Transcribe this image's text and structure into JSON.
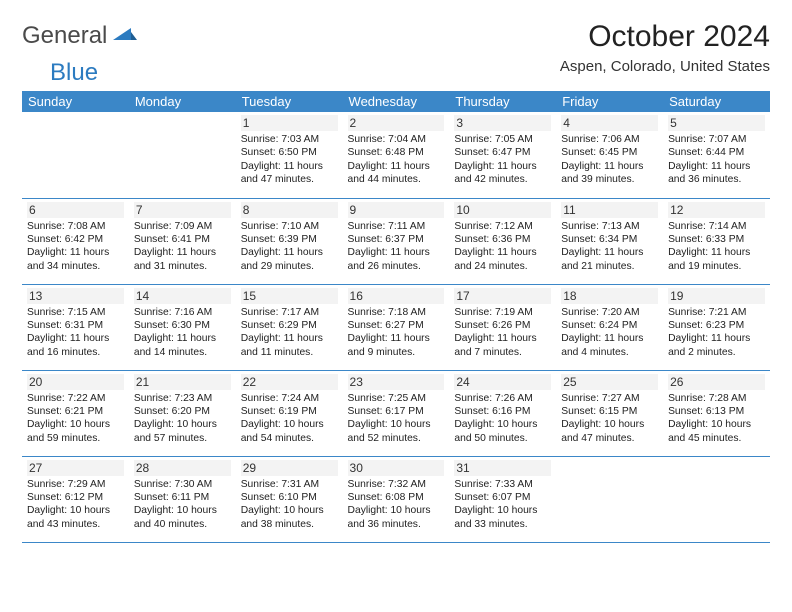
{
  "brand": {
    "text_general": "General",
    "text_blue": "Blue",
    "general_color": "#4a4a4a",
    "blue_color": "#2c7bc0"
  },
  "title": "October 2024",
  "location": "Aspen, Colorado, United States",
  "weekdays": [
    "Sunday",
    "Monday",
    "Tuesday",
    "Wednesday",
    "Thursday",
    "Friday",
    "Saturday"
  ],
  "colors": {
    "header_bg": "#3b87c8",
    "header_text": "#ffffff",
    "row_border": "#3b87c8",
    "daynum_bg": "#f3f3f3",
    "page_bg": "#ffffff"
  },
  "typography": {
    "month_title_fontsize": 30,
    "location_fontsize": 15,
    "weekday_fontsize": 13,
    "daynum_fontsize": 12,
    "cell_fontsize": 10.3
  },
  "weeks": [
    [
      null,
      null,
      {
        "day": "1",
        "sunrise": "Sunrise: 7:03 AM",
        "sunset": "Sunset: 6:50 PM",
        "daylight1": "Daylight: 11 hours",
        "daylight2": "and 47 minutes."
      },
      {
        "day": "2",
        "sunrise": "Sunrise: 7:04 AM",
        "sunset": "Sunset: 6:48 PM",
        "daylight1": "Daylight: 11 hours",
        "daylight2": "and 44 minutes."
      },
      {
        "day": "3",
        "sunrise": "Sunrise: 7:05 AM",
        "sunset": "Sunset: 6:47 PM",
        "daylight1": "Daylight: 11 hours",
        "daylight2": "and 42 minutes."
      },
      {
        "day": "4",
        "sunrise": "Sunrise: 7:06 AM",
        "sunset": "Sunset: 6:45 PM",
        "daylight1": "Daylight: 11 hours",
        "daylight2": "and 39 minutes."
      },
      {
        "day": "5",
        "sunrise": "Sunrise: 7:07 AM",
        "sunset": "Sunset: 6:44 PM",
        "daylight1": "Daylight: 11 hours",
        "daylight2": "and 36 minutes."
      }
    ],
    [
      {
        "day": "6",
        "sunrise": "Sunrise: 7:08 AM",
        "sunset": "Sunset: 6:42 PM",
        "daylight1": "Daylight: 11 hours",
        "daylight2": "and 34 minutes."
      },
      {
        "day": "7",
        "sunrise": "Sunrise: 7:09 AM",
        "sunset": "Sunset: 6:41 PM",
        "daylight1": "Daylight: 11 hours",
        "daylight2": "and 31 minutes."
      },
      {
        "day": "8",
        "sunrise": "Sunrise: 7:10 AM",
        "sunset": "Sunset: 6:39 PM",
        "daylight1": "Daylight: 11 hours",
        "daylight2": "and 29 minutes."
      },
      {
        "day": "9",
        "sunrise": "Sunrise: 7:11 AM",
        "sunset": "Sunset: 6:37 PM",
        "daylight1": "Daylight: 11 hours",
        "daylight2": "and 26 minutes."
      },
      {
        "day": "10",
        "sunrise": "Sunrise: 7:12 AM",
        "sunset": "Sunset: 6:36 PM",
        "daylight1": "Daylight: 11 hours",
        "daylight2": "and 24 minutes."
      },
      {
        "day": "11",
        "sunrise": "Sunrise: 7:13 AM",
        "sunset": "Sunset: 6:34 PM",
        "daylight1": "Daylight: 11 hours",
        "daylight2": "and 21 minutes."
      },
      {
        "day": "12",
        "sunrise": "Sunrise: 7:14 AM",
        "sunset": "Sunset: 6:33 PM",
        "daylight1": "Daylight: 11 hours",
        "daylight2": "and 19 minutes."
      }
    ],
    [
      {
        "day": "13",
        "sunrise": "Sunrise: 7:15 AM",
        "sunset": "Sunset: 6:31 PM",
        "daylight1": "Daylight: 11 hours",
        "daylight2": "and 16 minutes."
      },
      {
        "day": "14",
        "sunrise": "Sunrise: 7:16 AM",
        "sunset": "Sunset: 6:30 PM",
        "daylight1": "Daylight: 11 hours",
        "daylight2": "and 14 minutes."
      },
      {
        "day": "15",
        "sunrise": "Sunrise: 7:17 AM",
        "sunset": "Sunset: 6:29 PM",
        "daylight1": "Daylight: 11 hours",
        "daylight2": "and 11 minutes."
      },
      {
        "day": "16",
        "sunrise": "Sunrise: 7:18 AM",
        "sunset": "Sunset: 6:27 PM",
        "daylight1": "Daylight: 11 hours",
        "daylight2": "and 9 minutes."
      },
      {
        "day": "17",
        "sunrise": "Sunrise: 7:19 AM",
        "sunset": "Sunset: 6:26 PM",
        "daylight1": "Daylight: 11 hours",
        "daylight2": "and 7 minutes."
      },
      {
        "day": "18",
        "sunrise": "Sunrise: 7:20 AM",
        "sunset": "Sunset: 6:24 PM",
        "daylight1": "Daylight: 11 hours",
        "daylight2": "and 4 minutes."
      },
      {
        "day": "19",
        "sunrise": "Sunrise: 7:21 AM",
        "sunset": "Sunset: 6:23 PM",
        "daylight1": "Daylight: 11 hours",
        "daylight2": "and 2 minutes."
      }
    ],
    [
      {
        "day": "20",
        "sunrise": "Sunrise: 7:22 AM",
        "sunset": "Sunset: 6:21 PM",
        "daylight1": "Daylight: 10 hours",
        "daylight2": "and 59 minutes."
      },
      {
        "day": "21",
        "sunrise": "Sunrise: 7:23 AM",
        "sunset": "Sunset: 6:20 PM",
        "daylight1": "Daylight: 10 hours",
        "daylight2": "and 57 minutes."
      },
      {
        "day": "22",
        "sunrise": "Sunrise: 7:24 AM",
        "sunset": "Sunset: 6:19 PM",
        "daylight1": "Daylight: 10 hours",
        "daylight2": "and 54 minutes."
      },
      {
        "day": "23",
        "sunrise": "Sunrise: 7:25 AM",
        "sunset": "Sunset: 6:17 PM",
        "daylight1": "Daylight: 10 hours",
        "daylight2": "and 52 minutes."
      },
      {
        "day": "24",
        "sunrise": "Sunrise: 7:26 AM",
        "sunset": "Sunset: 6:16 PM",
        "daylight1": "Daylight: 10 hours",
        "daylight2": "and 50 minutes."
      },
      {
        "day": "25",
        "sunrise": "Sunrise: 7:27 AM",
        "sunset": "Sunset: 6:15 PM",
        "daylight1": "Daylight: 10 hours",
        "daylight2": "and 47 minutes."
      },
      {
        "day": "26",
        "sunrise": "Sunrise: 7:28 AM",
        "sunset": "Sunset: 6:13 PM",
        "daylight1": "Daylight: 10 hours",
        "daylight2": "and 45 minutes."
      }
    ],
    [
      {
        "day": "27",
        "sunrise": "Sunrise: 7:29 AM",
        "sunset": "Sunset: 6:12 PM",
        "daylight1": "Daylight: 10 hours",
        "daylight2": "and 43 minutes."
      },
      {
        "day": "28",
        "sunrise": "Sunrise: 7:30 AM",
        "sunset": "Sunset: 6:11 PM",
        "daylight1": "Daylight: 10 hours",
        "daylight2": "and 40 minutes."
      },
      {
        "day": "29",
        "sunrise": "Sunrise: 7:31 AM",
        "sunset": "Sunset: 6:10 PM",
        "daylight1": "Daylight: 10 hours",
        "daylight2": "and 38 minutes."
      },
      {
        "day": "30",
        "sunrise": "Sunrise: 7:32 AM",
        "sunset": "Sunset: 6:08 PM",
        "daylight1": "Daylight: 10 hours",
        "daylight2": "and 36 minutes."
      },
      {
        "day": "31",
        "sunrise": "Sunrise: 7:33 AM",
        "sunset": "Sunset: 6:07 PM",
        "daylight1": "Daylight: 10 hours",
        "daylight2": "and 33 minutes."
      },
      null,
      null
    ]
  ]
}
